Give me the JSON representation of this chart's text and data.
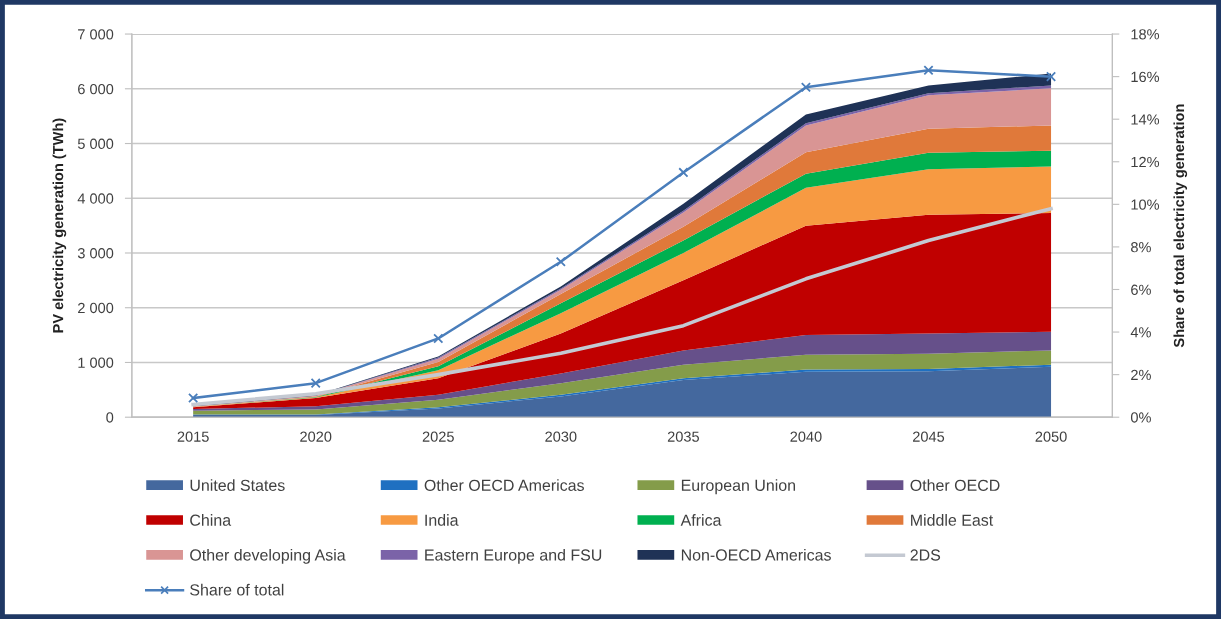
{
  "chart_data": {
    "type": "area",
    "stacked": true,
    "categories": [
      "2015",
      "2020",
      "2025",
      "2030",
      "2035",
      "2040",
      "2045",
      "2050"
    ],
    "ylabel": "PV electricity generation (TWh)",
    "y2label": "Share of total electricity generation",
    "ylim": [
      0,
      7000
    ],
    "yticks": [
      0,
      {
        "value": 1000,
        "label": "1 000"
      },
      {
        "value": 2000,
        "label": "2 000"
      },
      {
        "value": 3000,
        "label": "3 000"
      },
      {
        "value": 4000,
        "label": "4 000"
      },
      {
        "value": 5000,
        "label": "5 000"
      },
      {
        "value": 6000,
        "label": "6 000"
      },
      {
        "value": 7000,
        "label": "7 000"
      }
    ],
    "y2lim": [
      0,
      18
    ],
    "y2ticks": [
      {
        "value": 0,
        "label": "0%"
      },
      {
        "value": 2,
        "label": "2%"
      },
      {
        "value": 4,
        "label": "4%"
      },
      {
        "value": 6,
        "label": "6%"
      },
      {
        "value": 8,
        "label": "8%"
      },
      {
        "value": 10,
        "label": "10%"
      },
      {
        "value": 12,
        "label": "12%"
      },
      {
        "value": 14,
        "label": "14%"
      },
      {
        "value": 16,
        "label": "16%"
      },
      {
        "value": 18,
        "label": "18%"
      }
    ],
    "grid": "y",
    "legend": "bottom",
    "series": [
      {
        "name": "United States",
        "color": "#44689e",
        "values": [
          40,
          40,
          160,
          380,
          680,
          830,
          840,
          920
        ]
      },
      {
        "name": "Other OECD Americas",
        "color": "#1f70c1",
        "values": [
          10,
          10,
          20,
          30,
          30,
          40,
          40,
          40
        ]
      },
      {
        "name": "European Union",
        "color": "#849c4a",
        "values": [
          70,
          90,
          140,
          210,
          250,
          270,
          280,
          260
        ]
      },
      {
        "name": "Other OECD",
        "color": "#66508a",
        "values": [
          30,
          60,
          90,
          180,
          260,
          360,
          370,
          340
        ]
      },
      {
        "name": "China",
        "color": "#c00000",
        "values": [
          30,
          150,
          300,
          730,
          1280,
          2000,
          2170,
          2170
        ]
      },
      {
        "name": "India",
        "color": "#f79a42",
        "values": [
          10,
          10,
          150,
          370,
          500,
          690,
          830,
          850
        ]
      },
      {
        "name": "Africa",
        "color": "#00b050",
        "values": [
          0,
          10,
          70,
          180,
          230,
          260,
          300,
          290
        ]
      },
      {
        "name": "Middle East",
        "color": "#e0793a",
        "values": [
          0,
          10,
          80,
          170,
          250,
          390,
          440,
          460
        ]
      },
      {
        "name": "Other developing Asia",
        "color": "#d99594",
        "values": [
          10,
          10,
          60,
          80,
          260,
          490,
          610,
          680
        ]
      },
      {
        "name": "Eastern Europe and FSU",
        "color": "#7b63a8",
        "values": [
          0,
          0,
          20,
          20,
          30,
          40,
          40,
          50
        ]
      },
      {
        "name": "Non-OECD Americas",
        "color": "#1f3256",
        "values": [
          10,
          10,
          20,
          40,
          130,
          160,
          140,
          220
        ]
      },
      {
        "name": "2DS",
        "type": "line",
        "axis": "y2",
        "color": "#c4c9d2",
        "values": [
          0.6,
          1.1,
          2.0,
          3.0,
          4.3,
          6.5,
          8.3,
          9.8
        ]
      },
      {
        "name": "Share of total",
        "type": "line",
        "axis": "y2",
        "color": "#4a7ebb",
        "marker": "cross",
        "values": [
          0.9,
          1.6,
          3.7,
          7.3,
          11.5,
          15.5,
          16.3,
          16.0
        ]
      }
    ]
  }
}
